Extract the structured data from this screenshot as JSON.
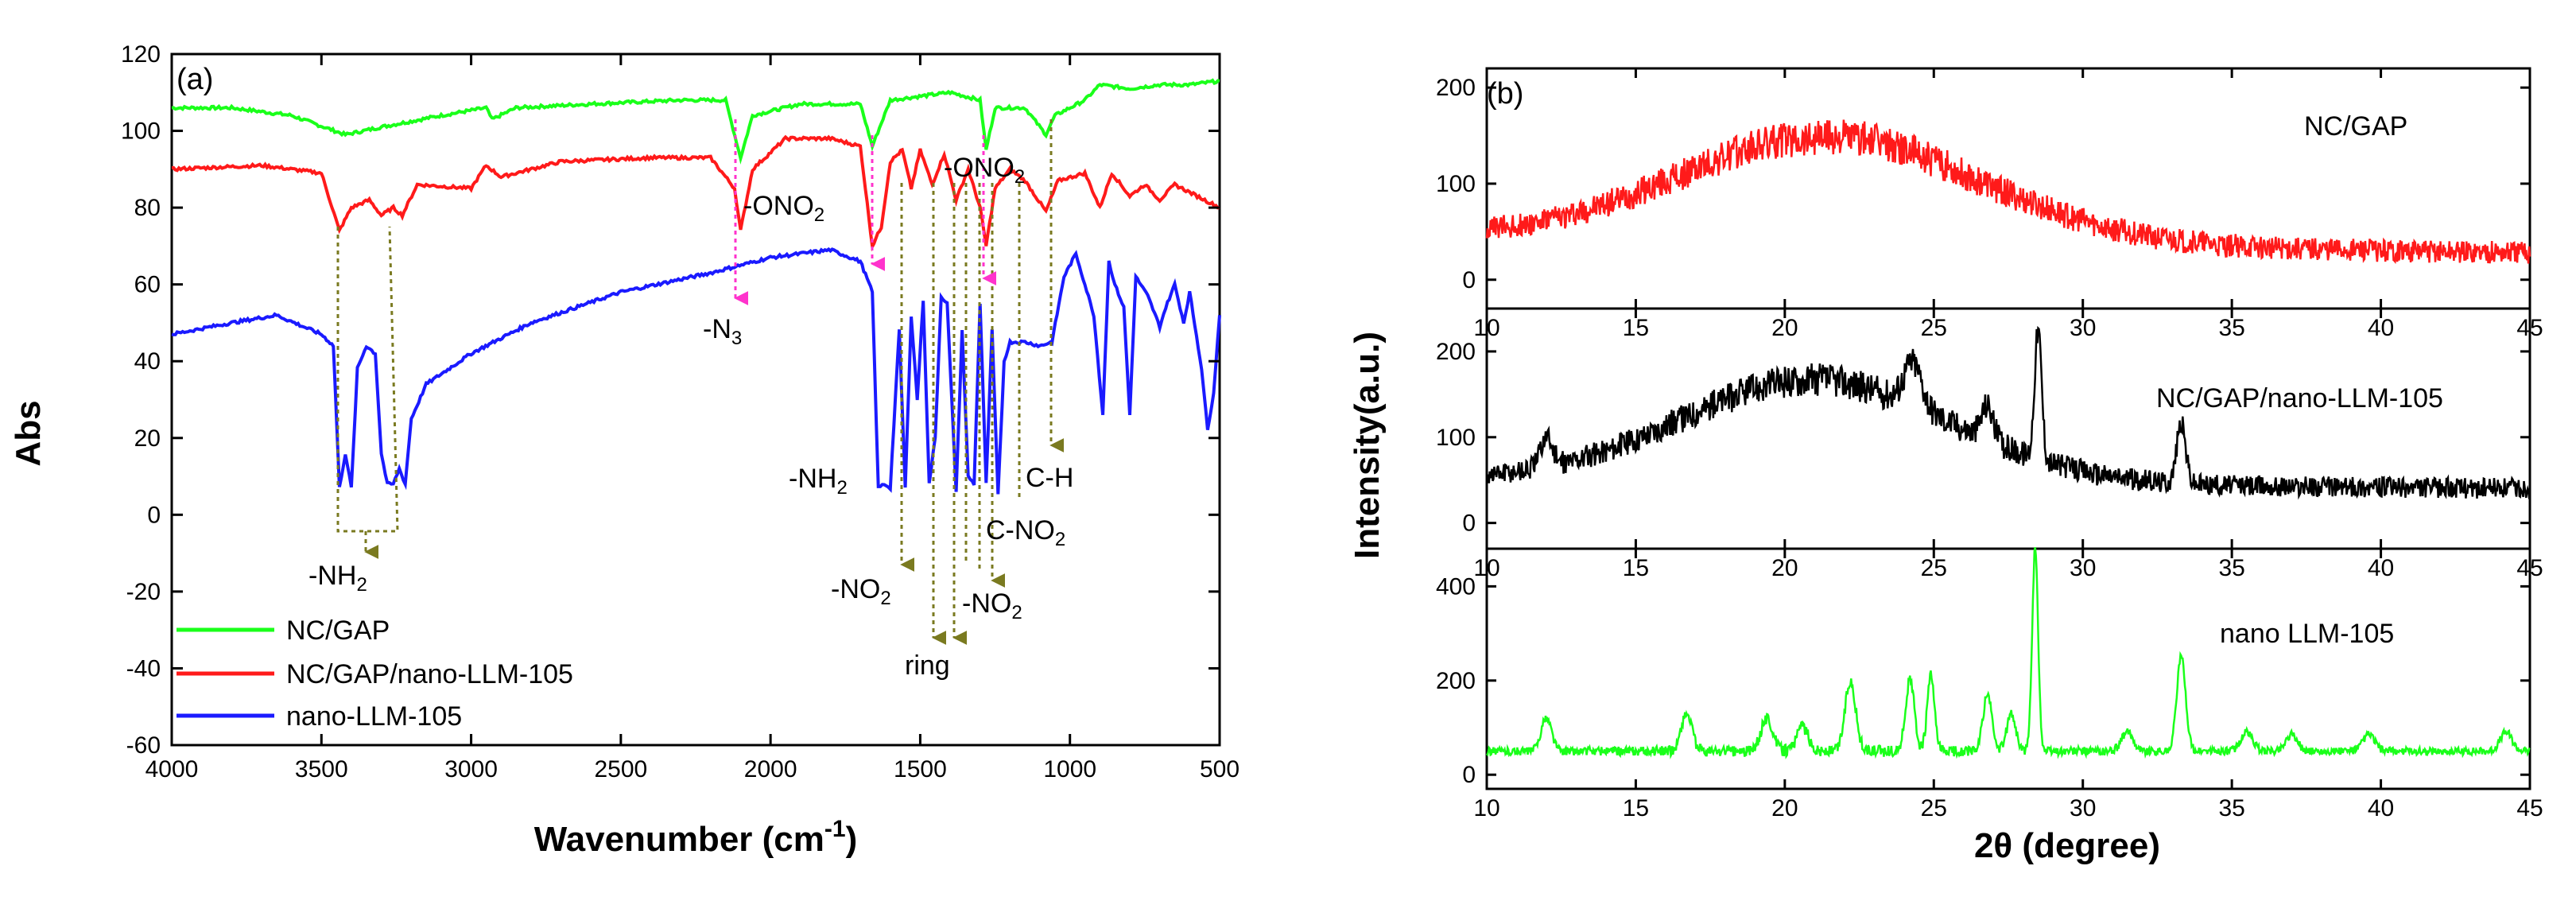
{
  "chart_data": [
    {
      "type": "line",
      "panel_label": "(a)",
      "xlabel_main": "Wavenumber (cm",
      "xlabel_sup": "-1",
      "xlabel_end": ")",
      "ylabel": "Abs",
      "xlim": [
        4000,
        500
      ],
      "ylim": [
        -60,
        120
      ],
      "x_ticks": [
        "4000",
        "3500",
        "3000",
        "2500",
        "2000",
        "1500",
        "1000",
        "500"
      ],
      "y_ticks": [
        "120",
        "100",
        "80",
        "60",
        "40",
        "20",
        "0",
        "-20",
        "-40",
        "-60"
      ],
      "series": [
        {
          "name": "NC/GAP",
          "color": "#1aff1a",
          "baseline": 106,
          "points": [
            [
              4000,
              106
            ],
            [
              3800,
              106
            ],
            [
              3600,
              104
            ],
            [
              3420,
              99
            ],
            [
              3300,
              101
            ],
            [
              3100,
              104
            ],
            [
              2950,
              106
            ],
            [
              2930,
              103
            ],
            [
              2850,
              106
            ],
            [
              2600,
              107
            ],
            [
              2300,
              108
            ],
            [
              2150,
              108
            ],
            [
              2100,
              93
            ],
            [
              2060,
              104
            ],
            [
              1900,
              107
            ],
            [
              1700,
              107
            ],
            [
              1660,
              96
            ],
            [
              1600,
              108
            ],
            [
              1400,
              110
            ],
            [
              1300,
              108
            ],
            [
              1280,
              95
            ],
            [
              1250,
              106
            ],
            [
              1150,
              106
            ],
            [
              1080,
              99
            ],
            [
              1050,
              104
            ],
            [
              950,
              108
            ],
            [
              900,
              112
            ],
            [
              800,
              111
            ],
            [
              700,
              112
            ],
            [
              600,
              112
            ],
            [
              500,
              113
            ]
          ]
        },
        {
          "name": "NC/GAP/nano-LLM-105",
          "color": "#ff1a1a",
          "baseline": 90,
          "points": [
            [
              4000,
              90
            ],
            [
              3700,
              91
            ],
            [
              3500,
              89
            ],
            [
              3440,
              74
            ],
            [
              3400,
              80
            ],
            [
              3340,
              82
            ],
            [
              3300,
              78
            ],
            [
              3260,
              80
            ],
            [
              3230,
              78
            ],
            [
              3180,
              86
            ],
            [
              3000,
              85
            ],
            [
              2950,
              91
            ],
            [
              2900,
              88
            ],
            [
              2700,
              92
            ],
            [
              2400,
              93
            ],
            [
              2200,
              93
            ],
            [
              2120,
              85
            ],
            [
              2100,
              74
            ],
            [
              2060,
              90
            ],
            [
              1950,
              98
            ],
            [
              1800,
              98
            ],
            [
              1700,
              96
            ],
            [
              1660,
              70
            ],
            [
              1630,
              75
            ],
            [
              1600,
              92
            ],
            [
              1560,
              95
            ],
            [
              1530,
              85
            ],
            [
              1500,
              95
            ],
            [
              1460,
              86
            ],
            [
              1420,
              94
            ],
            [
              1380,
              82
            ],
            [
              1340,
              90
            ],
            [
              1300,
              80
            ],
            [
              1280,
              70
            ],
            [
              1250,
              85
            ],
            [
              1200,
              90
            ],
            [
              1150,
              87
            ],
            [
              1080,
              79
            ],
            [
              1040,
              87
            ],
            [
              950,
              89
            ],
            [
              900,
              80
            ],
            [
              860,
              89
            ],
            [
              800,
              83
            ],
            [
              750,
              86
            ],
            [
              700,
              82
            ],
            [
              650,
              86
            ],
            [
              600,
              84
            ],
            [
              550,
              82
            ],
            [
              500,
              80
            ]
          ]
        },
        {
          "name": "nano-LLM-105",
          "color": "#1a1aff",
          "baseline": 48,
          "points": [
            [
              4000,
              47
            ],
            [
              3800,
              50
            ],
            [
              3650,
              52
            ],
            [
              3500,
              47
            ],
            [
              3460,
              44
            ],
            [
              3440,
              7
            ],
            [
              3420,
              16
            ],
            [
              3400,
              7
            ],
            [
              3380,
              38
            ],
            [
              3350,
              44
            ],
            [
              3320,
              42
            ],
            [
              3300,
              16
            ],
            [
              3280,
              8
            ],
            [
              3260,
              8
            ],
            [
              3240,
              12
            ],
            [
              3220,
              8
            ],
            [
              3200,
              25
            ],
            [
              3150,
              34
            ],
            [
              3000,
              42
            ],
            [
              2800,
              50
            ],
            [
              2500,
              58
            ],
            [
              2200,
              63
            ],
            [
              2000,
              67
            ],
            [
              1800,
              69
            ],
            [
              1700,
              66
            ],
            [
              1660,
              58
            ],
            [
              1640,
              7
            ],
            [
              1620,
              8
            ],
            [
              1600,
              7
            ],
            [
              1570,
              48
            ],
            [
              1550,
              7
            ],
            [
              1530,
              52
            ],
            [
              1510,
              30
            ],
            [
              1490,
              56
            ],
            [
              1470,
              8
            ],
            [
              1450,
              20
            ],
            [
              1430,
              57
            ],
            [
              1410,
              55
            ],
            [
              1380,
              6
            ],
            [
              1360,
              48
            ],
            [
              1340,
              10
            ],
            [
              1320,
              8
            ],
            [
              1300,
              55
            ],
            [
              1280,
              8
            ],
            [
              1260,
              48
            ],
            [
              1240,
              5
            ],
            [
              1220,
              40
            ],
            [
              1200,
              45
            ],
            [
              1150,
              45
            ],
            [
              1100,
              44
            ],
            [
              1060,
              45
            ],
            [
              1020,
              62
            ],
            [
              980,
              68
            ],
            [
              950,
              60
            ],
            [
              920,
              52
            ],
            [
              890,
              26
            ],
            [
              870,
              66
            ],
            [
              850,
              60
            ],
            [
              820,
              54
            ],
            [
              800,
              26
            ],
            [
              780,
              62
            ],
            [
              740,
              57
            ],
            [
              700,
              49
            ],
            [
              680,
              54
            ],
            [
              650,
              60
            ],
            [
              620,
              50
            ],
            [
              600,
              58
            ],
            [
              560,
              38
            ],
            [
              540,
              22
            ],
            [
              520,
              32
            ],
            [
              500,
              52
            ]
          ]
        }
      ],
      "annotations": [
        {
          "base": "-NH",
          "sub": "2",
          "after": ""
        },
        {
          "base": "-N",
          "sub": "3",
          "after": ""
        },
        {
          "base": "-ONO",
          "sub": "2",
          "after": ""
        },
        {
          "base": "-ONO",
          "sub": "2",
          "after": ""
        },
        {
          "base": "-NH",
          "sub": "2",
          "after": ""
        },
        {
          "base": "-NO",
          "sub": "2",
          "after": ""
        },
        {
          "base": "-NO",
          "sub": "2",
          "after": ""
        },
        {
          "base": "ring",
          "sub": "",
          "after": ""
        },
        {
          "base": "C-NO",
          "sub": "2",
          "after": ""
        },
        {
          "base": "C-H",
          "sub": "",
          "after": ""
        }
      ]
    },
    {
      "type": "line",
      "panel_label": "(b)",
      "xlabel": "2θ (degree)",
      "ylabel": "Intensity(a.u.)",
      "xlim": [
        10,
        45
      ],
      "x_ticks": [
        "10",
        "15",
        "20",
        "25",
        "30",
        "35",
        "40",
        "45"
      ],
      "subplots": [
        {
          "name": "NC/GAP",
          "color": "#ff1a1a",
          "ylim": [
            -30,
            220
          ],
          "y_ticks": [
            "200",
            "100",
            "0"
          ],
          "peaks": [
            [
              21.5,
              110,
              5.0
            ]
          ],
          "base": 45,
          "noise": 12,
          "end": 28
        },
        {
          "name": "NC/GAP/nano-LLM-105",
          "color": "#000000",
          "ylim": [
            -30,
            250
          ],
          "y_ticks": [
            "200",
            "100",
            "0"
          ],
          "peaks": [
            [
              21.0,
              120,
              4.5
            ],
            [
              28.5,
              150,
              0.12
            ],
            [
              33.3,
              70,
              0.15
            ],
            [
              24.3,
              50,
              0.3
            ],
            [
              26.8,
              40,
              0.2
            ],
            [
              12.0,
              35,
              0.2
            ]
          ],
          "base": 50,
          "noise": 12,
          "end": 40
        },
        {
          "name": "nano LLM-105",
          "color": "#1aff1a",
          "ylim": [
            -30,
            480
          ],
          "y_ticks": [
            "400",
            "200",
            "0"
          ],
          "peaks": [
            [
              12.0,
              70,
              0.18
            ],
            [
              16.7,
              80,
              0.18
            ],
            [
              19.4,
              70,
              0.2
            ],
            [
              20.6,
              50,
              0.2
            ],
            [
              22.2,
              150,
              0.18
            ],
            [
              24.2,
              150,
              0.15
            ],
            [
              24.9,
              160,
              0.12
            ],
            [
              26.8,
              120,
              0.15
            ],
            [
              27.6,
              80,
              0.15
            ],
            [
              28.4,
              430,
              0.1
            ],
            [
              31.5,
              40,
              0.2
            ],
            [
              33.3,
              200,
              0.15
            ],
            [
              35.5,
              40,
              0.2
            ],
            [
              37.0,
              35,
              0.2
            ],
            [
              39.6,
              35,
              0.2
            ],
            [
              44.2,
              40,
              0.2
            ]
          ],
          "base": 50,
          "noise": 8,
          "end": 50
        }
      ]
    }
  ]
}
